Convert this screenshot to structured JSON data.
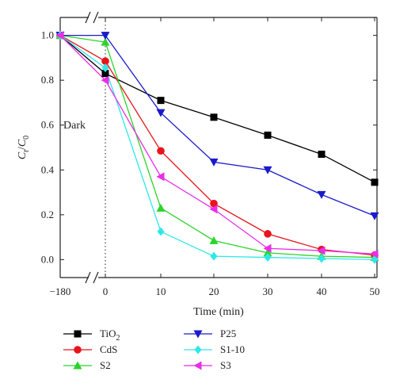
{
  "chart_data": {
    "type": "line",
    "xlabel": "Time (min)",
    "ylabel_main": "C",
    "ylabel_sub1": "t",
    "ylabel_sub2": "0",
    "x_ticks": [
      "-180",
      "0",
      "10",
      "20",
      "30",
      "40",
      "50"
    ],
    "y_ticks": [
      "0.0",
      "0.2",
      "0.4",
      "0.6",
      "0.8",
      "1.0"
    ],
    "ylim": [
      -0.08,
      1.08
    ],
    "x_axis_break": "between -180 and 0",
    "annotation": "Dark",
    "x": [
      "-180",
      "0",
      "10",
      "20",
      "30",
      "40",
      "50"
    ],
    "series": [
      {
        "name_main": "TiO",
        "name_sub": "2",
        "color": "#000000",
        "marker": "square",
        "values": [
          1.0,
          0.83,
          0.71,
          0.635,
          0.555,
          0.47,
          0.345
        ]
      },
      {
        "name_main": "CdS",
        "name_sub": "",
        "color": "#e8141b",
        "marker": "circle",
        "values": [
          1.0,
          0.885,
          0.485,
          0.25,
          0.115,
          0.045,
          0.02
        ]
      },
      {
        "name_main": "S2",
        "name_sub": "",
        "color": "#2bd42b",
        "marker": "triangle-up",
        "values": [
          1.0,
          0.97,
          0.23,
          0.085,
          0.03,
          0.015,
          0.01
        ]
      },
      {
        "name_main": "P25",
        "name_sub": "",
        "color": "#1a1acc",
        "marker": "triangle-down",
        "values": [
          1.0,
          1.0,
          0.655,
          0.435,
          0.4,
          0.29,
          0.195
        ]
      },
      {
        "name_main": "S1-10",
        "name_sub": "",
        "color": "#2ee8e8",
        "marker": "diamond",
        "values": [
          1.0,
          0.855,
          0.125,
          0.015,
          0.01,
          0.005,
          0.0
        ]
      },
      {
        "name_main": "S3",
        "name_sub": "",
        "color": "#e82ee8",
        "marker": "triangle-left",
        "values": [
          1.0,
          0.8,
          0.37,
          0.225,
          0.05,
          0.04,
          0.025
        ]
      }
    ],
    "legend_position": "bottom"
  }
}
